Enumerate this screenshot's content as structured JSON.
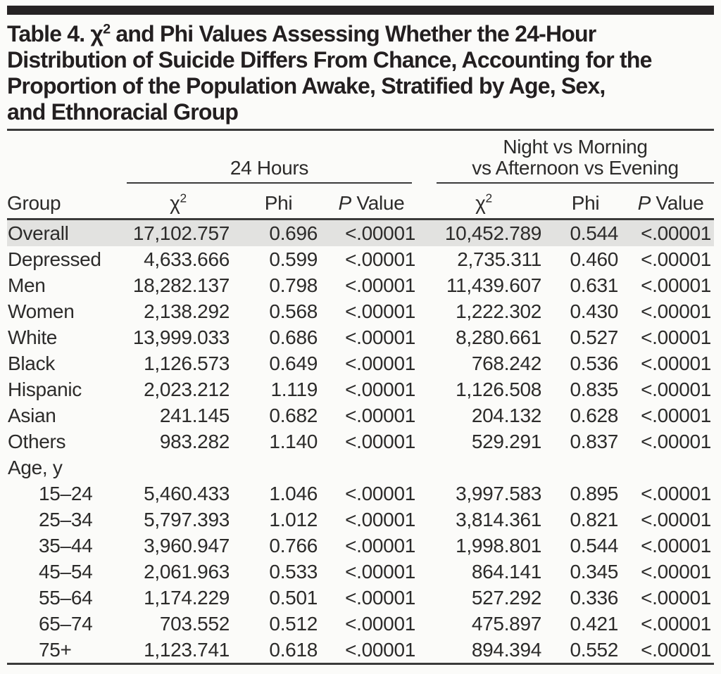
{
  "title": {
    "line1_part1": "Table 4. χ",
    "line1_sup": "2",
    "line1_part2": " and Phi Values Assessing Whether the 24-Hour",
    "line2": "Distribution of Suicide Differs From Chance, Accounting for the",
    "line3": "Proportion of the Population Awake, Stratified by Age, Sex,",
    "line4": "and Ethnoracial Group"
  },
  "colors": {
    "top_bar": "#262324",
    "rule": "#3b3b3b",
    "shaded_row": "#e2e2e0",
    "text": "#2c2b2a"
  },
  "table": {
    "spanners": {
      "hours24": "24 Hours",
      "night_line1": "Night vs Morning",
      "night_line2": "vs Afternoon vs Evening"
    },
    "columns": {
      "group": "Group",
      "chi_base": "χ",
      "chi_sup": "2",
      "phi": "Phi",
      "p_italic": "P",
      "p_rest": " Value"
    },
    "rows": [
      {
        "label": "Overall",
        "shaded": true,
        "indent": false,
        "values": [
          "17,102.757",
          "0.696",
          "<.00001",
          "10,452.789",
          "0.544",
          "<.00001"
        ]
      },
      {
        "label": "Depressed",
        "shaded": false,
        "indent": false,
        "values": [
          "4,633.666",
          "0.599",
          "<.00001",
          "2,735.311",
          "0.460",
          "<.00001"
        ]
      },
      {
        "label": "Men",
        "shaded": false,
        "indent": false,
        "values": [
          "18,282.137",
          "0.798",
          "<.00001",
          "11,439.607",
          "0.631",
          "<.00001"
        ]
      },
      {
        "label": "Women",
        "shaded": false,
        "indent": false,
        "values": [
          "2,138.292",
          "0.568",
          "<.00001",
          "1,222.302",
          "0.430",
          "<.00001"
        ]
      },
      {
        "label": "White",
        "shaded": false,
        "indent": false,
        "values": [
          "13,999.033",
          "0.686",
          "<.00001",
          "8,280.661",
          "0.527",
          "<.00001"
        ]
      },
      {
        "label": "Black",
        "shaded": false,
        "indent": false,
        "values": [
          "1,126.573",
          "0.649",
          "<.00001",
          "768.242",
          "0.536",
          "<.00001"
        ]
      },
      {
        "label": "Hispanic",
        "shaded": false,
        "indent": false,
        "values": [
          "2,023.212",
          "1.119",
          "<.00001",
          "1,126.508",
          "0.835",
          "<.00001"
        ]
      },
      {
        "label": "Asian",
        "shaded": false,
        "indent": false,
        "values": [
          "241.145",
          "0.682",
          "<.00001",
          "204.132",
          "0.628",
          "<.00001"
        ]
      },
      {
        "label": "Others",
        "shaded": false,
        "indent": false,
        "values": [
          "983.282",
          "1.140",
          "<.00001",
          "529.291",
          "0.837",
          "<.00001"
        ]
      },
      {
        "label": "Age, y",
        "shaded": false,
        "indent": false,
        "values": [
          "",
          "",
          "",
          "",
          "",
          ""
        ]
      },
      {
        "label": "15–24",
        "shaded": false,
        "indent": true,
        "values": [
          "5,460.433",
          "1.046",
          "<.00001",
          "3,997.583",
          "0.895",
          "<.00001"
        ]
      },
      {
        "label": "25–34",
        "shaded": false,
        "indent": true,
        "values": [
          "5,797.393",
          "1.012",
          "<.00001",
          "3,814.361",
          "0.821",
          "<.00001"
        ]
      },
      {
        "label": "35–44",
        "shaded": false,
        "indent": true,
        "values": [
          "3,960.947",
          "0.766",
          "<.00001",
          "1,998.801",
          "0.544",
          "<.00001"
        ]
      },
      {
        "label": "45–54",
        "shaded": false,
        "indent": true,
        "values": [
          "2,061.963",
          "0.533",
          "<.00001",
          "864.141",
          "0.345",
          "<.00001"
        ]
      },
      {
        "label": "55–64",
        "shaded": false,
        "indent": true,
        "values": [
          "1,174.229",
          "0.501",
          "<.00001",
          "527.292",
          "0.336",
          "<.00001"
        ]
      },
      {
        "label": "65–74",
        "shaded": false,
        "indent": true,
        "values": [
          "703.552",
          "0.512",
          "<.00001",
          "475.897",
          "0.421",
          "<.00001"
        ]
      },
      {
        "label": "75+",
        "shaded": false,
        "indent": true,
        "values": [
          "1,123.741",
          "0.618",
          "<.00001",
          "894.394",
          "0.552",
          "<.00001"
        ]
      }
    ]
  }
}
